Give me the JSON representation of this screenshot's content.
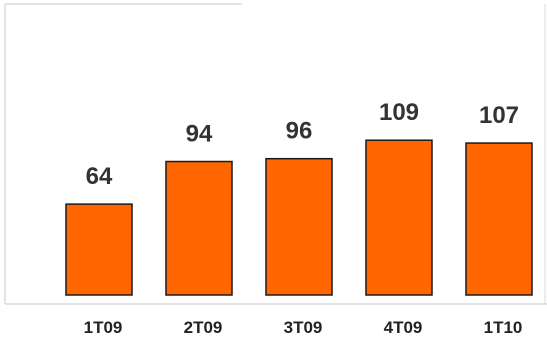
{
  "chart_data": {
    "type": "bar",
    "categories": [
      "1T09",
      "2T09",
      "3T09",
      "4T09",
      "1T10"
    ],
    "values": [
      64,
      94,
      96,
      109,
      107
    ],
    "ylim": [
      0,
      150
    ],
    "grid": false,
    "bar_color": "#ff6600",
    "bar_outline_color": "#1a1a1a",
    "axis_color": "#c0c0c0"
  }
}
